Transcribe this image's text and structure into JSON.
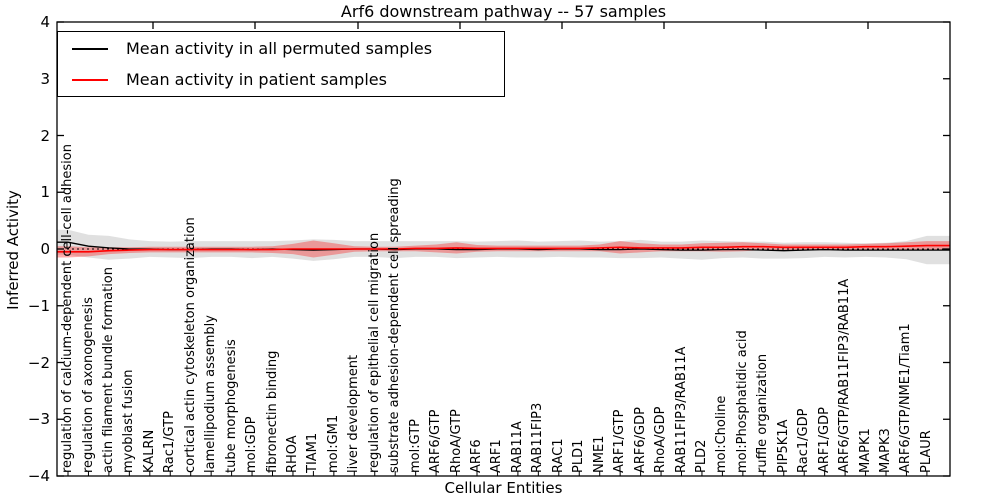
{
  "chart_data": {
    "type": "line",
    "title": "Arf6 downstream pathway -- 57 samples",
    "xlabel": "Cellular Entities",
    "ylabel": "Inferred Activity",
    "ylim": [
      -4,
      4
    ],
    "yticks": [
      4,
      3,
      2,
      1,
      0,
      -1,
      -2,
      -3,
      -4
    ],
    "grid": false,
    "legend_position": "upper left",
    "zero_line": {
      "style": "dashed",
      "color": "#000000"
    },
    "categories": [
      "regulation of calcium-dependent cell-cell adhesion",
      "regulation of axonogenesis",
      "actin filament bundle formation",
      "myoblast fusion",
      "KALRN",
      "Rac1/GTP",
      "cortical actin cytoskeleton organization",
      "lamellipodium assembly",
      "tube morphogenesis",
      "mol:GDP",
      "fibronectin binding",
      "RHOA",
      "TIAM1",
      "mol:GM1",
      "liver development",
      "regulation of epithelial cell migration",
      "substrate adhesion-dependent cell spreading",
      "mol:GTP",
      "ARF6/GTP",
      "RhoA/GTP",
      "ARF6",
      "ARF1",
      "RAB11A",
      "RAB11FIP3",
      "RAC1",
      "PLD1",
      "NME1",
      "ARF1/GTP",
      "ARF6/GDP",
      "RhoA/GDP",
      "RAB11FIP3/RAB11A",
      "PLD2",
      "mol:Choline",
      "mol:Phosphatidic acid",
      "ruffle organization",
      "PIP5K1A",
      "Rac1/GDP",
      "ARF1/GDP",
      "ARF6/GTP/RAB11FIP3/RAB11A",
      "MAPK1",
      "MAPK3",
      "ARF6/GTP/NME1/Tiam1",
      "PLAUR"
    ],
    "series": [
      {
        "name": "Mean activity in all permuted samples",
        "color": "#000000",
        "values": [
          0.12,
          0.05,
          0.02,
          0.0,
          0.0,
          -0.01,
          -0.01,
          0.0,
          0.0,
          -0.01,
          0.0,
          -0.01,
          -0.02,
          -0.01,
          0.0,
          0.0,
          -0.01,
          0.0,
          0.0,
          -0.01,
          -0.01,
          0.0,
          0.0,
          -0.01,
          0.0,
          0.0,
          -0.01,
          -0.01,
          0.0,
          -0.01,
          -0.02,
          -0.02,
          -0.01,
          -0.01,
          -0.02,
          -0.03,
          -0.02,
          -0.01,
          -0.02,
          -0.02,
          -0.02,
          -0.02,
          -0.02
        ]
      },
      {
        "name": "Mean activity in patient samples",
        "color": "#ff0000",
        "values": [
          -0.05,
          -0.05,
          -0.03,
          -0.02,
          -0.01,
          -0.01,
          -0.01,
          -0.01,
          -0.01,
          -0.01,
          -0.01,
          0.0,
          0.0,
          0.0,
          0.0,
          0.0,
          0.0,
          0.01,
          0.01,
          0.02,
          0.01,
          0.01,
          0.01,
          0.01,
          0.01,
          0.01,
          0.02,
          0.03,
          0.02,
          0.02,
          0.02,
          0.03,
          0.03,
          0.04,
          0.04,
          0.03,
          0.03,
          0.03,
          0.03,
          0.04,
          0.04,
          0.05,
          0.06
        ]
      }
    ],
    "bands": [
      {
        "name": "permuted samples spread",
        "color": "#bbbbbb",
        "opacity": 0.45,
        "center_series": 0,
        "half_widths": [
          0.22,
          0.2,
          0.21,
          0.17,
          0.14,
          0.14,
          0.15,
          0.14,
          0.14,
          0.15,
          0.14,
          0.16,
          0.19,
          0.17,
          0.14,
          0.14,
          0.15,
          0.14,
          0.14,
          0.15,
          0.14,
          0.14,
          0.15,
          0.14,
          0.14,
          0.15,
          0.14,
          0.15,
          0.16,
          0.14,
          0.15,
          0.17,
          0.15,
          0.14,
          0.15,
          0.14,
          0.14,
          0.13,
          0.13,
          0.12,
          0.13,
          0.16,
          0.25
        ]
      },
      {
        "name": "patient samples spread",
        "color": "#ff0000",
        "opacity": 0.32,
        "center_series": 1,
        "half_widths": [
          0.1,
          0.08,
          0.06,
          0.05,
          0.05,
          0.05,
          0.05,
          0.05,
          0.05,
          0.05,
          0.06,
          0.09,
          0.15,
          0.1,
          0.05,
          0.04,
          0.04,
          0.05,
          0.07,
          0.1,
          0.06,
          0.05,
          0.05,
          0.05,
          0.05,
          0.05,
          0.06,
          0.11,
          0.08,
          0.06,
          0.06,
          0.07,
          0.08,
          0.08,
          0.06,
          0.05,
          0.05,
          0.05,
          0.05,
          0.05,
          0.06,
          0.07,
          0.08
        ]
      }
    ]
  }
}
